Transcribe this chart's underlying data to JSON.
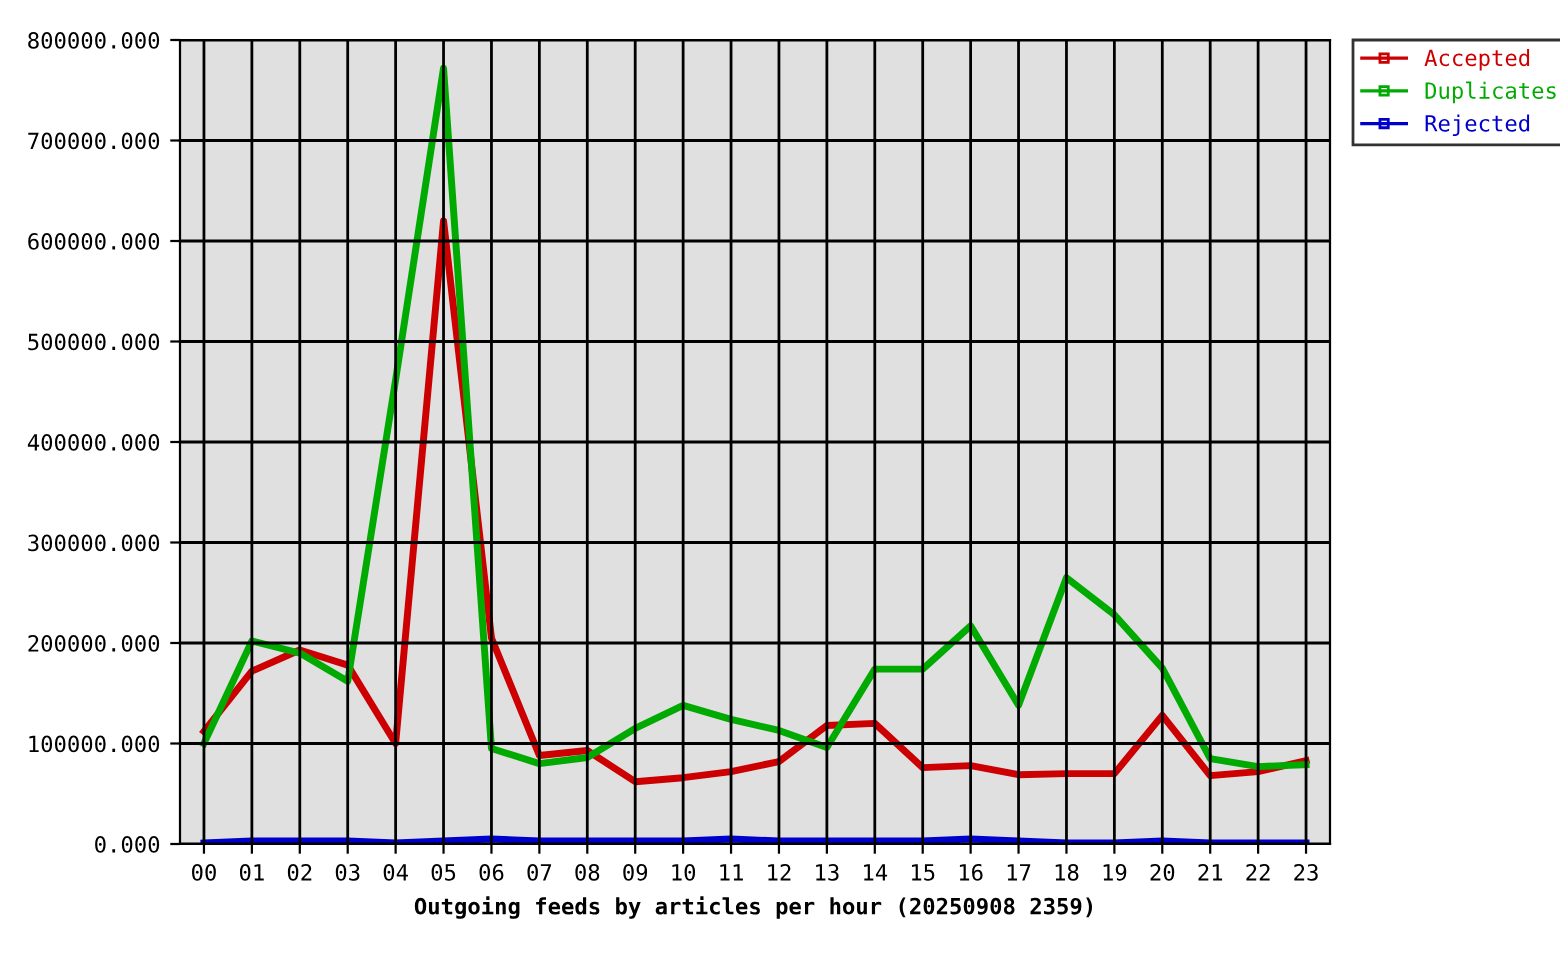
{
  "chart_data": {
    "type": "line",
    "xlabel": "Outgoing feeds by articles per hour (20250908 2359)",
    "categories": [
      "00",
      "01",
      "02",
      "03",
      "04",
      "05",
      "06",
      "07",
      "08",
      "09",
      "10",
      "11",
      "12",
      "13",
      "14",
      "15",
      "16",
      "17",
      "18",
      "19",
      "20",
      "21",
      "22",
      "23"
    ],
    "series": [
      {
        "name": "Accepted",
        "color": "#cc0000",
        "values": [
          112000,
          172000,
          193000,
          178000,
          100000,
          620000,
          205000,
          88000,
          93000,
          62000,
          66000,
          72000,
          82000,
          118000,
          120000,
          76000,
          78000,
          69000,
          70000,
          70000,
          128000,
          68000,
          72000,
          83000
        ]
      },
      {
        "name": "Duplicates",
        "color": "#00aa00",
        "values": [
          100000,
          202000,
          190000,
          162000,
          462000,
          772000,
          95000,
          80000,
          86000,
          115000,
          138000,
          124000,
          113000,
          96000,
          174000,
          174000,
          217000,
          138000,
          265000,
          228000,
          175000,
          85000,
          77000,
          79000
        ]
      },
      {
        "name": "Rejected",
        "color": "#0000cc",
        "values": [
          1000,
          3000,
          3000,
          3000,
          1000,
          3000,
          5000,
          3000,
          3000,
          3000,
          3000,
          5000,
          3000,
          3000,
          3000,
          3000,
          5000,
          3000,
          1000,
          1000,
          3000,
          1000,
          1000,
          1000
        ]
      }
    ],
    "ylim": [
      0,
      800000
    ],
    "yticks": [
      {
        "value": 0,
        "label": "0.000"
      },
      {
        "value": 100000,
        "label": "100000.000"
      },
      {
        "value": 200000,
        "label": "200000.000"
      },
      {
        "value": 300000,
        "label": "300000.000"
      },
      {
        "value": 400000,
        "label": "400000.000"
      },
      {
        "value": 500000,
        "label": "500000.000"
      },
      {
        "value": 600000,
        "label": "600000.000"
      },
      {
        "value": 700000,
        "label": "700000.000"
      },
      {
        "value": 800000,
        "label": "800000.000"
      }
    ],
    "grid": true,
    "legend": "top right",
    "marker": "none",
    "line_style": "solid"
  }
}
